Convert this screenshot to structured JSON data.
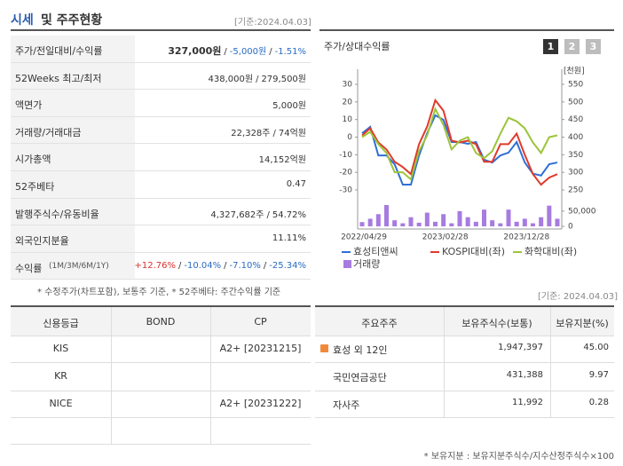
{
  "header": {
    "title_main": "시세",
    "title_rest": "및 주주현황",
    "date": "[기준:2024.04.03]"
  },
  "summary": {
    "separator": "/",
    "rows": [
      {
        "label": "주가/전일대비/수익률",
        "values": [
          "327,000원",
          "-5,000원",
          "-1.51%"
        ]
      },
      {
        "label": "52Weeks 최고/최저",
        "values": [
          "438,000원",
          "279,500원"
        ]
      },
      {
        "label": "액면가",
        "values": [
          "5,000원"
        ]
      },
      {
        "label": "거래량/거래대금",
        "values": [
          "22,328주",
          "74억원"
        ]
      },
      {
        "label": "시가총액",
        "values": [
          "14,152억원"
        ]
      },
      {
        "label": "52주베타",
        "values": [
          "0.47"
        ]
      },
      {
        "label": "발행주식수/유동비율",
        "values": [
          "4,327,682주",
          "54.72%"
        ]
      },
      {
        "label": "외국인지분율",
        "values": [
          "11.11%"
        ]
      },
      {
        "label": "수익률",
        "label_sub": "(1M/3M/6M/1Y)",
        "values": [
          "+12.76%",
          "-10.04%",
          "-7.10%",
          "-25.34%"
        ]
      }
    ],
    "footnote": "* 수정주가(차트포함), 보통주 기준, * 52주베타: 주간수익률 기준"
  },
  "chart": {
    "title": "주가/상대수익률",
    "buttons": [
      "1",
      "2",
      "3"
    ],
    "type": "line",
    "categories": [
      "2022/04/29",
      null,
      null,
      null,
      null,
      null,
      null,
      null,
      null,
      null,
      "2023/02/28",
      null,
      null,
      null,
      null,
      null,
      null,
      null,
      null,
      null,
      "2023/12/28",
      null,
      null,
      null,
      null
    ],
    "ylim": [
      -30,
      30
    ],
    "yticks": [
      30,
      20,
      10,
      0,
      -10,
      -20,
      -30
    ],
    "y2label": "[천원]",
    "y2lim": [
      250,
      550
    ],
    "y2ticks": [
      550,
      500,
      450,
      400,
      350,
      300,
      250
    ],
    "series": [
      {
        "name": "효성티앤씨",
        "color": "#2f6fd6",
        "axis": "y2",
        "values": [
          411,
          429,
          348,
          348,
          323,
          265,
          265,
          348,
          411,
          462,
          449,
          386,
          386,
          381,
          386,
          336,
          328,
          348,
          356,
          386,
          328,
          296,
          291,
          323,
          328
        ]
      },
      {
        "name": "KOSPI대비(좌)",
        "color": "#e03a2a",
        "values": [
          1,
          5,
          -3,
          -7,
          -14,
          -17,
          -21,
          -4,
          6,
          21,
          15,
          -2,
          -3,
          -2,
          -4,
          -14,
          -14,
          -4,
          -4,
          2,
          -10,
          -21,
          -27,
          -23,
          -21
        ]
      },
      {
        "name": "화학대비(좌)",
        "color": "#9cc43a",
        "values": [
          0,
          3,
          -4,
          -9,
          -20,
          -20,
          -24,
          -8,
          1,
          16,
          7,
          -7,
          -2,
          0,
          -9,
          -12,
          -8,
          2,
          11,
          9,
          5,
          -3,
          -9,
          0,
          1
        ]
      }
    ],
    "volume": {
      "name": "거래량",
      "color": "#a77be0",
      "ylim": [
        0,
        70000
      ],
      "yticks": [
        {
          "value": 50000,
          "label": "50,000"
        },
        0
      ],
      "values": [
        14000,
        25000,
        40000,
        70000,
        20000,
        10000,
        30000,
        12000,
        45000,
        15000,
        40000,
        10000,
        50000,
        30000,
        15000,
        55000,
        20000,
        10000,
        55000,
        15000,
        25000,
        10000,
        30000,
        68000,
        25000
      ]
    }
  },
  "holders_date": "[기준: 2024.04.03]",
  "credit": {
    "headers": [
      "신용등급",
      "BOND",
      "CP"
    ],
    "rows": [
      {
        "agency": "KIS",
        "cp": "A2+ [20231215]"
      },
      {
        "agency": "KR"
      },
      {
        "agency": "NICE",
        "cp": "A2+ [20231222]"
      }
    ]
  },
  "holders": {
    "headers": [
      "주요주주",
      "보유주식수(보통)",
      "보유지분(%)"
    ],
    "rows": [
      [
        "효성 외 12인",
        "1,947,397",
        "45.00"
      ],
      [
        "국민연금공단",
        "431,388",
        "9.97"
      ],
      [
        "자사주",
        "11,992",
        "0.28"
      ]
    ],
    "footnote": "* 보유지분 : 보유지분주식수/지수산정주식수×100"
  }
}
